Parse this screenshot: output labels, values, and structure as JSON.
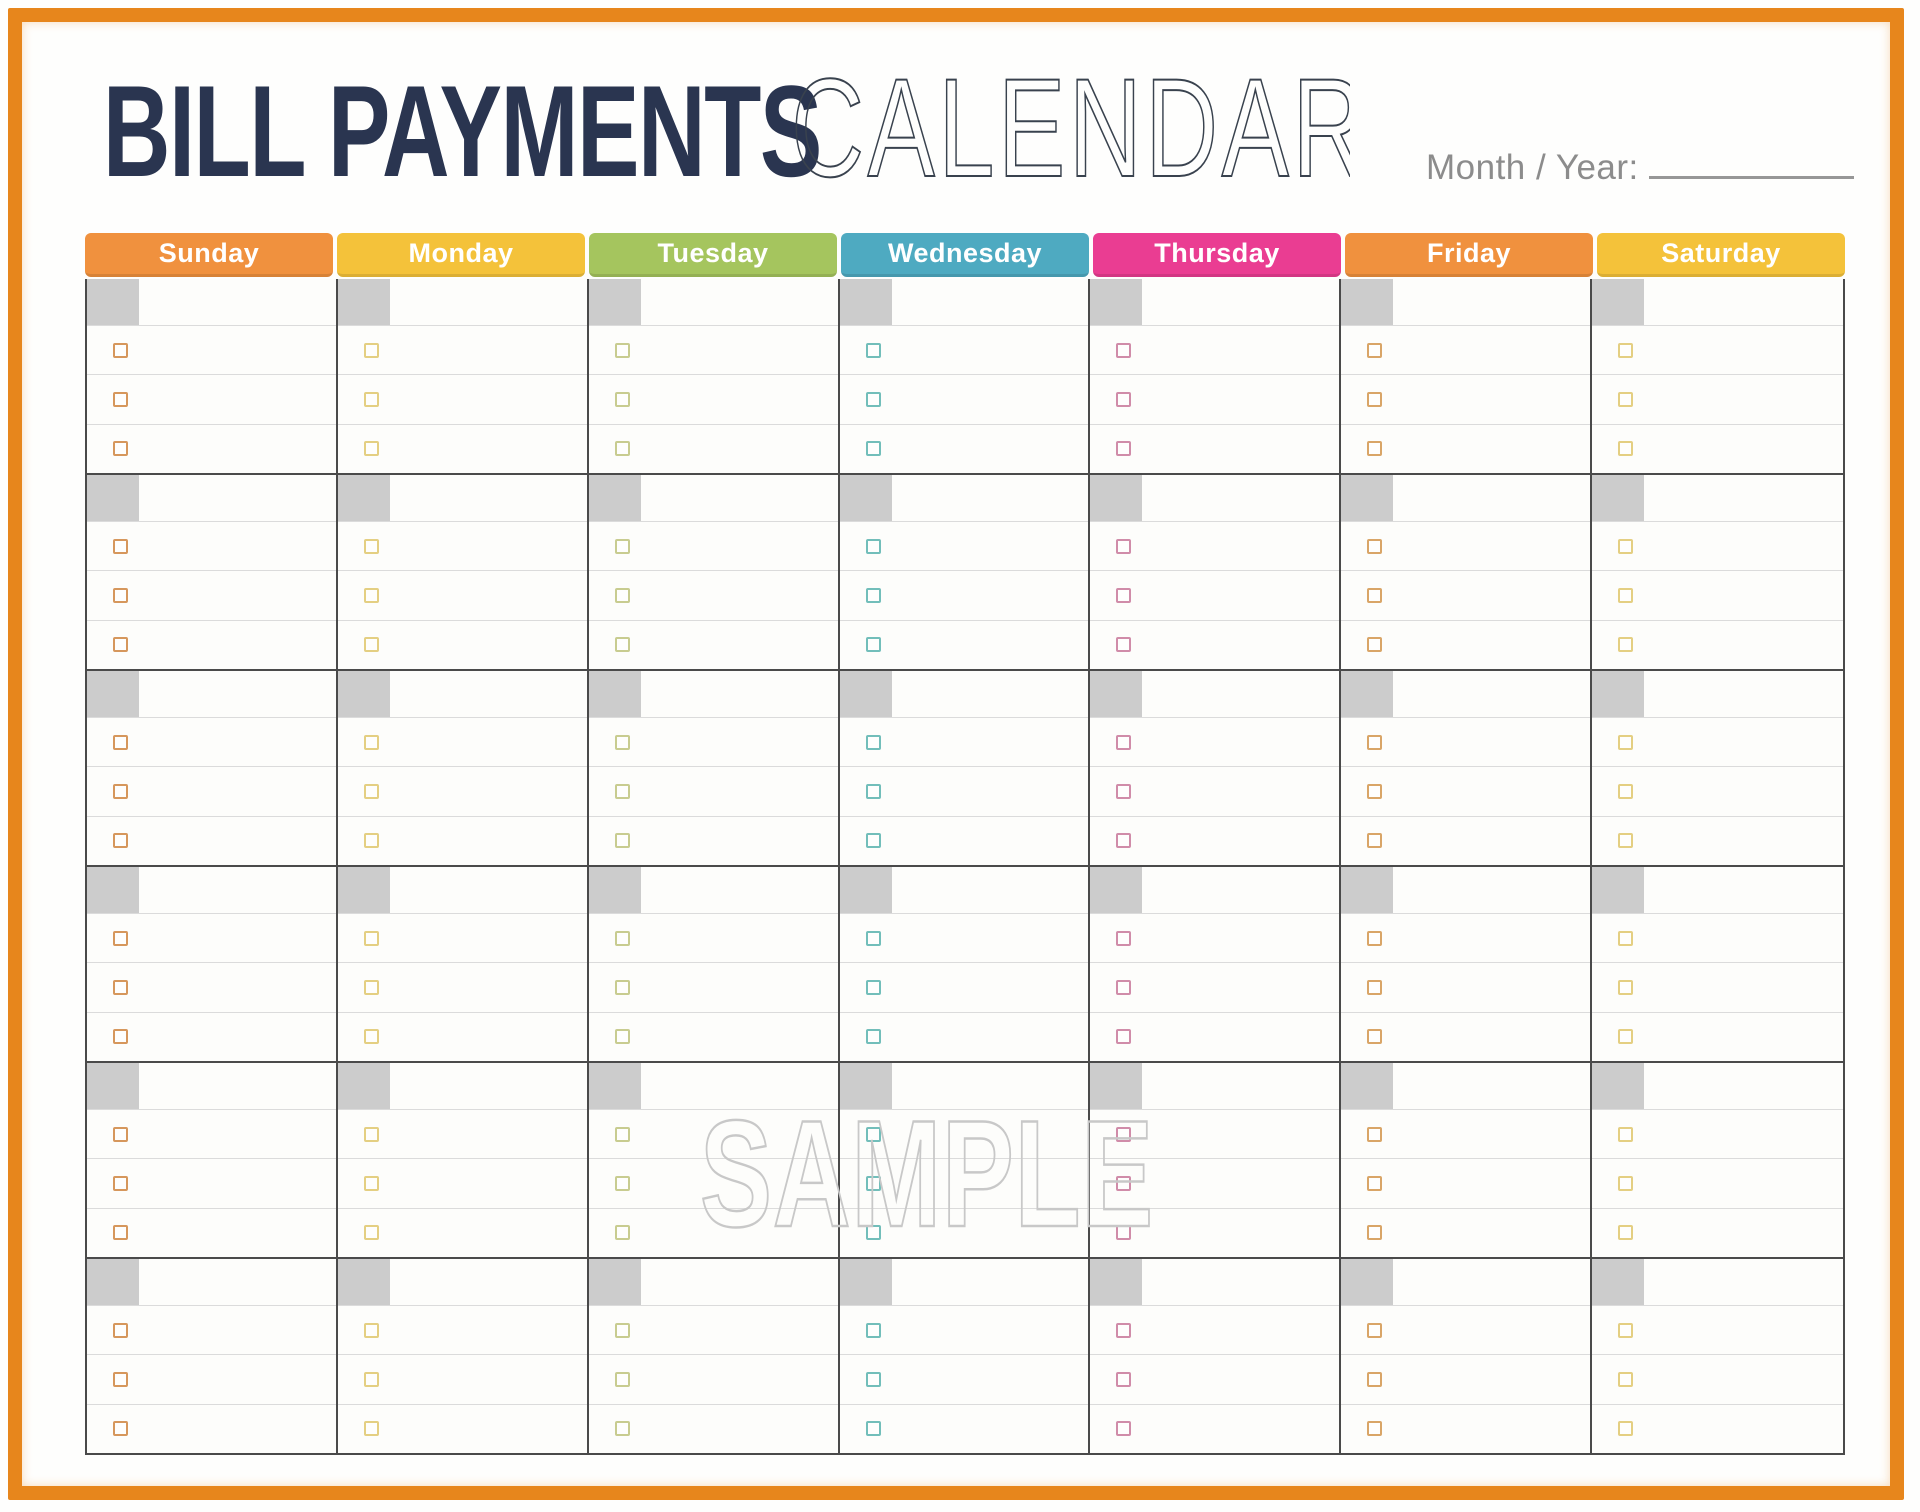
{
  "header": {
    "title_bold": "BILL PAYMENTS",
    "title_light": "CALENDAR",
    "title_bold_color": "#2A3550",
    "title_light_color": "#39424E",
    "month_year_label": "Month / Year:",
    "month_year_color": "#8C8C8C"
  },
  "watermark": {
    "text": "SAMPLE",
    "color": "#C8C8C8"
  },
  "frame": {
    "color": "#E7861C"
  },
  "calendar": {
    "weeks": 6,
    "bill_slots_per_day": 3,
    "header_text_color": "#FFFFFF",
    "date_box_color": "#CCCCCC",
    "grid_line_color": "#4A4A4A",
    "slot_line_color": "#DBDBDB",
    "days": [
      {
        "label": "Sunday",
        "header_color": "#F0913E",
        "checkbox_color": "#D6975C"
      },
      {
        "label": "Monday",
        "header_color": "#F4C23A",
        "checkbox_color": "#E4CF82"
      },
      {
        "label": "Tuesday",
        "header_color": "#A5C55E",
        "checkbox_color": "#C8CC90"
      },
      {
        "label": "Wednesday",
        "header_color": "#4EAAC1",
        "checkbox_color": "#72BEBA"
      },
      {
        "label": "Thursday",
        "header_color": "#EA3D92",
        "checkbox_color": "#D08CA9"
      },
      {
        "label": "Friday",
        "header_color": "#F0913E",
        "checkbox_color": "#D9A567"
      },
      {
        "label": "Saturday",
        "header_color": "#F4C23A",
        "checkbox_color": "#E4CF82"
      }
    ]
  }
}
